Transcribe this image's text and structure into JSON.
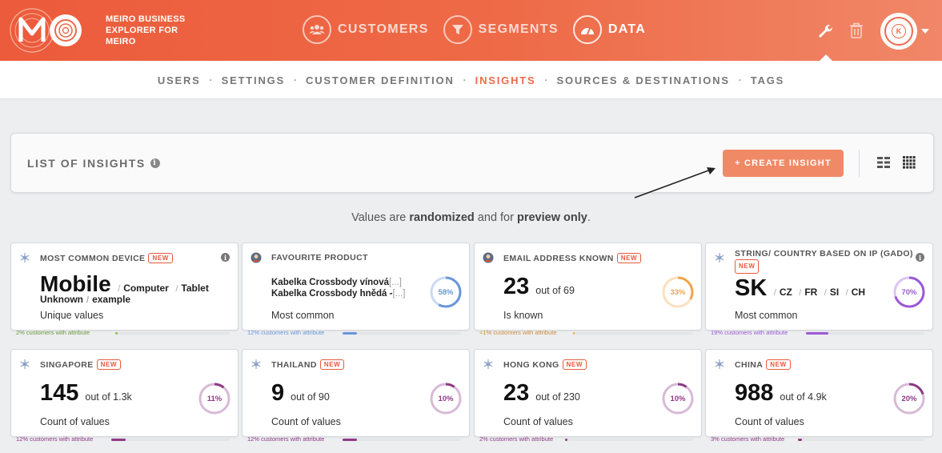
{
  "header": {
    "brand_line1": "MEIRO BUSINESS",
    "brand_line2": "EXPLORER FOR",
    "brand_line3": "MEIRO",
    "nav": [
      {
        "label": "CUSTOMERS"
      },
      {
        "label": "SEGMENTS"
      },
      {
        "label": "DATA"
      }
    ],
    "avatar_initial": "K"
  },
  "subnav": {
    "items": [
      "USERS",
      "SETTINGS",
      "CUSTOMER DEFINITION",
      "INSIGHTS",
      "SOURCES & DESTINATIONS",
      "TAGS"
    ],
    "active": "INSIGHTS",
    "separator": "·"
  },
  "panel": {
    "title": "LIST OF INSIGHTS",
    "info_glyph": "i",
    "create_label": "+ CREATE INSIGHT"
  },
  "preview": {
    "prefix": "Values are ",
    "bold1": "randomized",
    "middle": " and for ",
    "bold2": "preview only",
    "suffix": "."
  },
  "badge_label": "NEW",
  "cards": [
    {
      "title": "MOST COMMON DEVICE",
      "new": true,
      "main": "Mobile",
      "others": [
        "Computer",
        "Tablet"
      ],
      "others2": [
        "Unknown",
        "example"
      ],
      "caption": "Unique values",
      "footer": "2% customers with attribute",
      "fill": 0.02,
      "color": "#8bc34a"
    },
    {
      "title": "FAVOURITE PRODUCT",
      "new": false,
      "products": [
        "Kabelka Crossbody vínová",
        "Kabelka Crossbody hnědá -"
      ],
      "more": "[...]",
      "caption": "Most common",
      "donut": "58%",
      "donut_value": 0.58,
      "footer": "12% customers with attribute",
      "fill": 0.12,
      "color": "#6a96dc"
    },
    {
      "title": "EMAIL ADDRESS KNOWN",
      "new": true,
      "value": "23",
      "outof": "out of 69",
      "caption": "Is known",
      "donut": "33%",
      "donut_value": 0.33,
      "footer": "<1% customers with attribute",
      "fill": 0.006,
      "color": "#f0a54a"
    },
    {
      "title": "STRING/ COUNTRY BASED ON IP (GADO)",
      "new": true,
      "main": "SK",
      "others": [
        "CZ",
        "FR",
        "SI",
        "CH"
      ],
      "caption": "Most common",
      "donut": "70%",
      "donut_value": 0.7,
      "footer": "19% customers with attribute",
      "fill": 0.19,
      "color": "#9b59d6"
    },
    {
      "title": "SINGAPORE",
      "new": true,
      "value": "145",
      "outof": "out of 1.3k",
      "caption": "Count of values",
      "donut": "11%",
      "donut_value": 0.11,
      "footer": "12% customers with attribute",
      "fill": 0.12,
      "color": "#8e3a86"
    },
    {
      "title": "THAILAND",
      "new": true,
      "value": "9",
      "outof": "out of 90",
      "caption": "Count of values",
      "donut": "10%",
      "donut_value": 0.1,
      "footer": "12% customers with attribute",
      "fill": 0.12,
      "color": "#8e3a86"
    },
    {
      "title": "HONG KONG",
      "new": true,
      "value": "23",
      "outof": "out of 230",
      "caption": "Count of values",
      "donut": "10%",
      "donut_value": 0.1,
      "footer": "2% customers with attribute",
      "fill": 0.02,
      "color": "#8e3a86"
    },
    {
      "title": "CHINA",
      "new": true,
      "value": "988",
      "outof": "out of 4.9k",
      "caption": "Count of values",
      "donut": "20%",
      "donut_value": 0.2,
      "footer": "3% customers with attribute",
      "fill": 0.03,
      "color": "#8e3a86"
    }
  ]
}
